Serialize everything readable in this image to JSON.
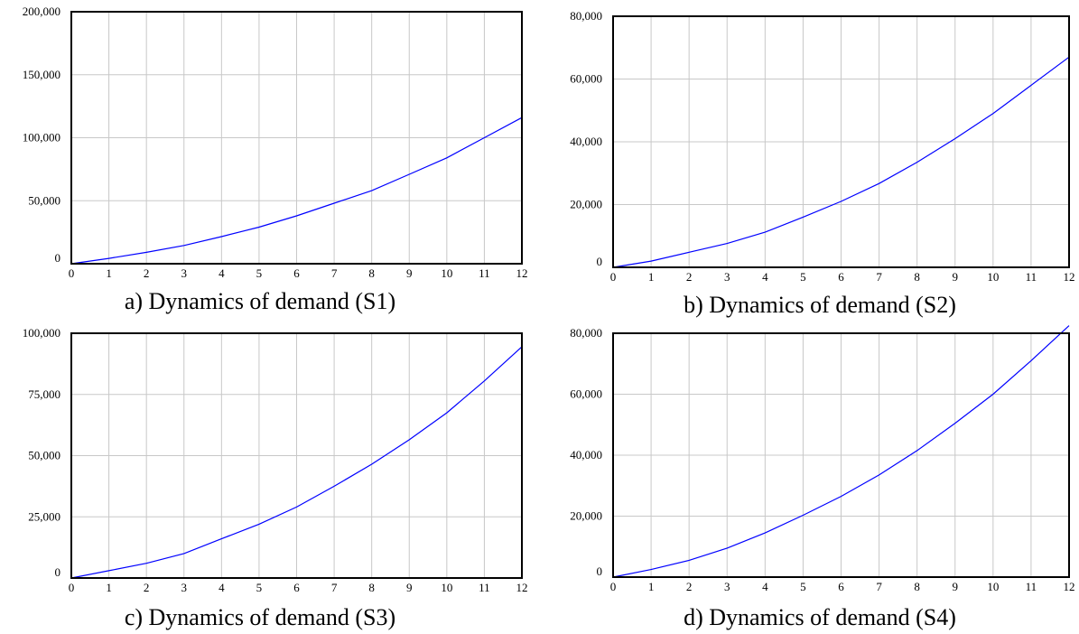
{
  "figure": {
    "panels": [
      {
        "caption": "a) Dynamics of demand (S1)"
      },
      {
        "caption": "b) Dynamics of demand (S2)"
      },
      {
        "caption": "c) Dynamics of demand (S3)"
      },
      {
        "caption": "d) Dynamics of demand (S4)"
      }
    ]
  },
  "chart_data": [
    {
      "type": "line",
      "title": "",
      "xlabel": "",
      "ylabel": "",
      "xlim": [
        0,
        12
      ],
      "ylim": [
        0,
        200000
      ],
      "x": [
        0,
        1,
        2,
        3,
        4,
        5,
        6,
        7,
        8,
        9,
        10,
        11,
        12
      ],
      "xticks": [
        "0",
        "1",
        "2",
        "3",
        "4",
        "5",
        "6",
        "7",
        "8",
        "9",
        "10",
        "11",
        "12"
      ],
      "yticks": [
        {
          "value": 0,
          "label": "0"
        },
        {
          "value": 50000,
          "label": "50,000"
        },
        {
          "value": 100000,
          "label": "100,000"
        },
        {
          "value": 150000,
          "label": "150,000"
        },
        {
          "value": 200000,
          "label": "200,000"
        }
      ],
      "grid": true,
      "series": [
        {
          "color": "#0000ff",
          "values": [
            0,
            4200,
            9000,
            14500,
            21500,
            29000,
            38000,
            48000,
            58000,
            71000,
            84000,
            100000,
            116000
          ]
        }
      ]
    },
    {
      "type": "line",
      "title": "",
      "xlabel": "",
      "ylabel": "",
      "xlim": [
        0,
        12
      ],
      "ylim": [
        0,
        80000
      ],
      "x": [
        0,
        1,
        2,
        3,
        4,
        5,
        6,
        7,
        8,
        9,
        10,
        11,
        12
      ],
      "xticks": [
        "0",
        "1",
        "2",
        "3",
        "4",
        "5",
        "6",
        "7",
        "8",
        "9",
        "10",
        "11",
        "12"
      ],
      "yticks": [
        {
          "value": 0,
          "label": "0"
        },
        {
          "value": 20000,
          "label": "20,000"
        },
        {
          "value": 40000,
          "label": "40,000"
        },
        {
          "value": 60000,
          "label": "60,000"
        },
        {
          "value": 80000,
          "label": "80,000"
        }
      ],
      "grid": true,
      "series": [
        {
          "color": "#0000ff",
          "values": [
            0,
            2000,
            4800,
            7600,
            11200,
            16000,
            21000,
            26700,
            33500,
            41000,
            49000,
            58000,
            67000
          ]
        }
      ]
    },
    {
      "type": "line",
      "title": "",
      "xlabel": "",
      "ylabel": "",
      "xlim": [
        0,
        12
      ],
      "ylim": [
        0,
        100000
      ],
      "x": [
        0,
        1,
        2,
        3,
        4,
        5,
        6,
        7,
        8,
        9,
        10,
        11,
        12
      ],
      "xticks": [
        "0",
        "1",
        "2",
        "3",
        "4",
        "5",
        "6",
        "7",
        "8",
        "9",
        "10",
        "11",
        "12"
      ],
      "yticks": [
        {
          "value": 0,
          "label": "0"
        },
        {
          "value": 25000,
          "label": "25,000"
        },
        {
          "value": 50000,
          "label": "50,000"
        },
        {
          "value": 75000,
          "label": "75,000"
        },
        {
          "value": 100000,
          "label": "100,000"
        }
      ],
      "grid": true,
      "series": [
        {
          "color": "#0000ff",
          "values": [
            0,
            3000,
            6000,
            10000,
            16000,
            22000,
            29000,
            37500,
            46500,
            56500,
            67500,
            80500,
            94500
          ]
        }
      ]
    },
    {
      "type": "line",
      "title": "",
      "xlabel": "",
      "ylabel": "",
      "xlim": [
        0,
        12
      ],
      "ylim": [
        0,
        80000
      ],
      "x": [
        0,
        1,
        2,
        3,
        4,
        5,
        6,
        7,
        8,
        9,
        10,
        11,
        12
      ],
      "xticks": [
        "0",
        "1",
        "2",
        "3",
        "4",
        "5",
        "6",
        "7",
        "8",
        "9",
        "10",
        "11",
        "12"
      ],
      "yticks": [
        {
          "value": 0,
          "label": "0"
        },
        {
          "value": 20000,
          "label": "20,000"
        },
        {
          "value": 40000,
          "label": "40,000"
        },
        {
          "value": 60000,
          "label": "60,000"
        },
        {
          "value": 80000,
          "label": "80,000"
        }
      ],
      "grid": true,
      "series": [
        {
          "color": "#0000ff",
          "values": [
            0,
            2500,
            5500,
            9500,
            14500,
            20300,
            26500,
            33500,
            41500,
            50500,
            60000,
            71000,
            82500
          ]
        }
      ]
    }
  ]
}
